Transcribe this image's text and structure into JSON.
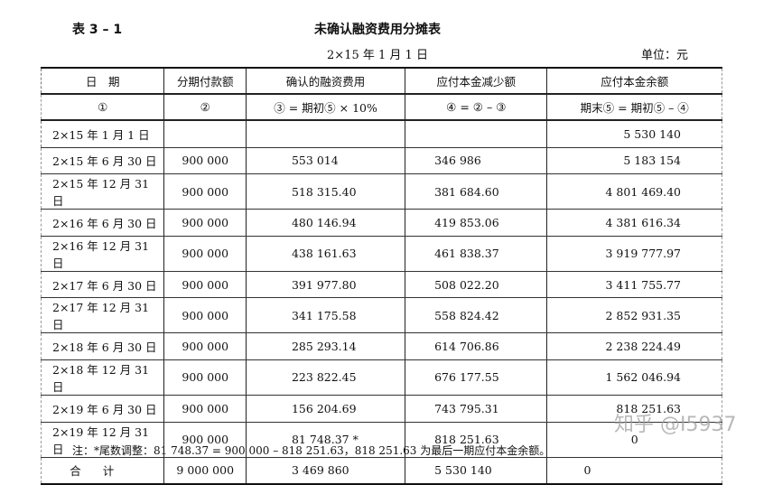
{
  "table_number": "表 3 – 1",
  "title": "未确认融资费用分摊表",
  "date": "2×15 年 1 月 1 日",
  "unit": "单位：元",
  "headers": [
    "日　期",
    "分期付款额",
    "确认的融资费用",
    "应付本金减少额",
    "应付本金余额"
  ],
  "formulas": [
    "①",
    "②",
    "③ = 期初⑤ × 10%",
    "④ = ② – ③",
    "期末⑤ = 期初⑤ – ④"
  ],
  "rows": [
    [
      "2×15 年 1 月 1 日",
      "",
      "",
      "",
      "5 530 140"
    ],
    [
      "2×15 年 6 月 30 日",
      "900 000",
      "553 014",
      "346 986",
      "5 183 154"
    ],
    [
      "2×15 年 12 月 31 日",
      "900 000",
      "518 315.40",
      "381 684.60",
      "4 801 469.40"
    ],
    [
      "2×16 年 6 月 30 日",
      "900 000",
      "480 146.94",
      "419 853.06",
      "4 381 616.34"
    ],
    [
      "2×16 年 12 月 31 日",
      "900 000",
      "438 161.63",
      "461 838.37",
      "3 919 777.97"
    ],
    [
      "2×17 年 6 月 30 日",
      "900 000",
      "391 977.80",
      "508 022.20",
      "3 411 755.77"
    ],
    [
      "2×17 年 12 月 31 日",
      "900 000",
      "341 175.58",
      "558 824.42",
      "2 852 931.35"
    ],
    [
      "2×18 年 6 月 30 日",
      "900 000",
      "285 293.14",
      "614 706.86",
      "2 238 224.49"
    ],
    [
      "2×18 年 12 月 31 日",
      "900 000",
      "223 822.45",
      "676 177.55",
      "1 562 046.94"
    ],
    [
      "2×19 年 6 月 30 日",
      "900 000",
      "156 204.69",
      "743 795.31",
      "818 251.63"
    ],
    [
      "2×19 年 12 月 31 日",
      "900 000",
      "81 748.37 *",
      "818 251.63",
      "0"
    ]
  ],
  "total": [
    "合计",
    "9 000 000",
    "3 469 860",
    "5 530 140",
    "0"
  ],
  "note": "注：*尾数调整：81 748.37 = 900 000 – 818 251.63，818 251.63 为最后一期应付本金余额。",
  "watermark": "知乎 @I5937"
}
